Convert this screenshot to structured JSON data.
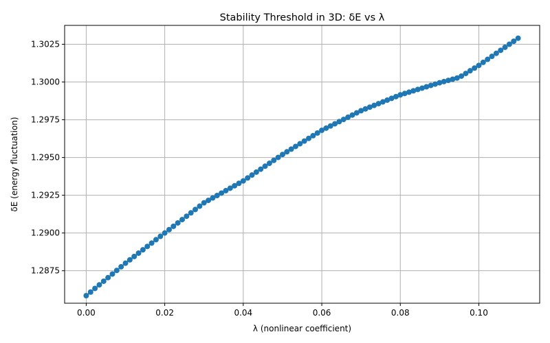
{
  "chart_data": {
    "type": "scatter",
    "title": "Stability Threshold in 3D: δE vs λ",
    "xlabel": "λ (nonlinear coefficient)",
    "ylabel": "δE (energy fluctuation)",
    "xlim": [
      -0.0055,
      0.1155
    ],
    "ylim": [
      1.28535,
      1.30375
    ],
    "xticks": [
      0.0,
      0.02,
      0.04,
      0.06,
      0.08,
      0.1
    ],
    "xtick_labels": [
      "0.00",
      "0.02",
      "0.04",
      "0.06",
      "0.08",
      "0.10"
    ],
    "yticks": [
      1.2875,
      1.29,
      1.2925,
      1.295,
      1.2975,
      1.3,
      1.3025
    ],
    "ytick_labels": [
      "1.2875",
      "1.2900",
      "1.2925",
      "1.2950",
      "1.2975",
      "1.3000",
      "1.3025"
    ],
    "grid": true,
    "marker": "circle",
    "line": true,
    "color": "#1f77b4",
    "series": [
      {
        "x_start": 0.0,
        "x_end": 0.11,
        "n_points": 100,
        "knots": [
          [
            0.0,
            1.28585
          ],
          [
            0.01,
            1.288
          ],
          [
            0.02,
            1.29
          ],
          [
            0.03,
            1.292
          ],
          [
            0.04,
            1.29345
          ],
          [
            0.05,
            1.2952
          ],
          [
            0.06,
            1.2968
          ],
          [
            0.07,
            1.2981
          ],
          [
            0.08,
            1.29915
          ],
          [
            0.09,
            1.29995
          ],
          [
            0.095,
            1.3003
          ],
          [
            0.1,
            1.3011
          ],
          [
            0.11,
            1.3029
          ]
        ]
      }
    ]
  }
}
